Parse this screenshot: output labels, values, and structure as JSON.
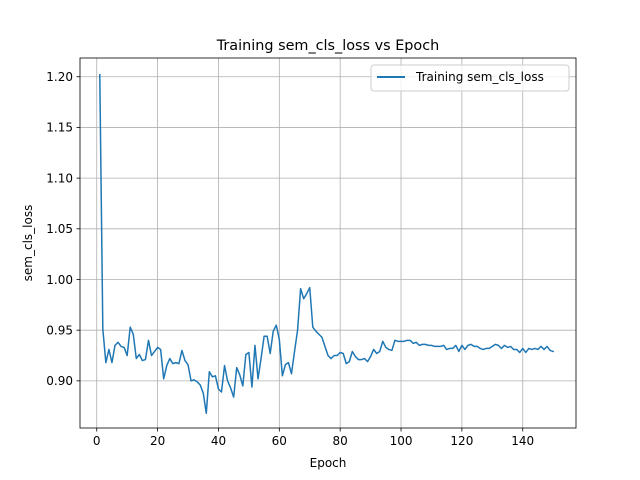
{
  "chart_data": {
    "type": "line",
    "title": "Training sem_cls_loss vs Epoch",
    "xlabel": "Epoch",
    "ylabel": "sem_cls_loss",
    "xlim": [
      -5.5,
      157.5
    ],
    "ylim": [
      0.8535,
      1.2185
    ],
    "xticks": [
      0,
      20,
      40,
      60,
      80,
      100,
      120,
      140
    ],
    "xtick_labels": [
      "0",
      "20",
      "40",
      "60",
      "80",
      "100",
      "120",
      "140"
    ],
    "yticks": [
      0.9,
      0.95,
      1.0,
      1.05,
      1.1,
      1.15,
      1.2
    ],
    "ytick_labels": [
      "0.90",
      "0.95",
      "1.00",
      "1.05",
      "1.10",
      "1.15",
      "1.20"
    ],
    "grid": true,
    "legend": {
      "position": "upper right",
      "entries": [
        "Training sem_cls_loss"
      ]
    },
    "series": [
      {
        "name": "Training sem_cls_loss",
        "color": "#1f77b4",
        "x": [
          1,
          2,
          3,
          4,
          5,
          6,
          7,
          8,
          9,
          10,
          11,
          12,
          13,
          14,
          15,
          16,
          17,
          18,
          19,
          20,
          21,
          22,
          23,
          24,
          25,
          26,
          27,
          28,
          29,
          30,
          31,
          32,
          33,
          34,
          35,
          36,
          37,
          38,
          39,
          40,
          41,
          42,
          43,
          44,
          45,
          46,
          47,
          48,
          49,
          50,
          51,
          52,
          53,
          54,
          55,
          56,
          57,
          58,
          59,
          60,
          61,
          62,
          63,
          64,
          65,
          66,
          67,
          68,
          69,
          70,
          71,
          72,
          73,
          74,
          75,
          76,
          77,
          78,
          79,
          80,
          81,
          82,
          83,
          84,
          85,
          86,
          87,
          88,
          89,
          90,
          91,
          92,
          93,
          94,
          95,
          96,
          97,
          98,
          99,
          100,
          101,
          102,
          103,
          104,
          105,
          106,
          107,
          108,
          109,
          110,
          111,
          112,
          113,
          114,
          115,
          116,
          117,
          118,
          119,
          120,
          121,
          122,
          123,
          124,
          125,
          126,
          127,
          128,
          129,
          130,
          131,
          132,
          133,
          134,
          135,
          136,
          137,
          138,
          139,
          140,
          141,
          142,
          143,
          144,
          145,
          146,
          147,
          148,
          149,
          150
        ],
        "values": [
          1.202,
          0.951,
          0.918,
          0.931,
          0.918,
          0.935,
          0.938,
          0.934,
          0.933,
          0.925,
          0.953,
          0.946,
          0.922,
          0.926,
          0.92,
          0.921,
          0.94,
          0.925,
          0.929,
          0.933,
          0.931,
          0.902,
          0.915,
          0.922,
          0.917,
          0.918,
          0.917,
          0.93,
          0.92,
          0.916,
          0.9,
          0.901,
          0.899,
          0.896,
          0.888,
          0.868,
          0.909,
          0.904,
          0.905,
          0.892,
          0.889,
          0.915,
          0.9,
          0.893,
          0.884,
          0.913,
          0.906,
          0.895,
          0.926,
          0.928,
          0.894,
          0.935,
          0.902,
          0.922,
          0.944,
          0.944,
          0.927,
          0.949,
          0.955,
          0.941,
          0.905,
          0.916,
          0.918,
          0.907,
          0.929,
          0.95,
          0.991,
          0.981,
          0.986,
          0.992,
          0.953,
          0.949,
          0.946,
          0.943,
          0.934,
          0.925,
          0.922,
          0.925,
          0.925,
          0.928,
          0.927,
          0.917,
          0.919,
          0.929,
          0.924,
          0.921,
          0.921,
          0.922,
          0.919,
          0.924,
          0.931,
          0.927,
          0.929,
          0.939,
          0.933,
          0.931,
          0.93,
          0.94,
          0.939,
          0.939,
          0.939,
          0.94,
          0.94,
          0.937,
          0.938,
          0.935,
          0.936,
          0.936,
          0.935,
          0.935,
          0.934,
          0.934,
          0.934,
          0.935,
          0.931,
          0.932,
          0.932,
          0.935,
          0.929,
          0.935,
          0.931,
          0.935,
          0.936,
          0.934,
          0.934,
          0.932,
          0.931,
          0.932,
          0.932,
          0.934,
          0.936,
          0.935,
          0.932,
          0.935,
          0.933,
          0.934,
          0.931,
          0.931,
          0.928,
          0.932,
          0.928,
          0.932,
          0.931,
          0.932,
          0.931,
          0.934,
          0.931,
          0.934,
          0.93,
          0.929
        ]
      }
    ]
  }
}
